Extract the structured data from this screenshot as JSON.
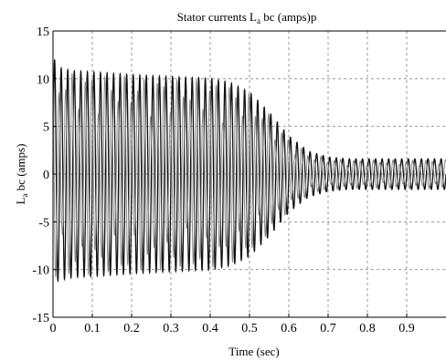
{
  "chart_data": {
    "type": "line",
    "title": {
      "prefix": "Stator currents L",
      "sub": "a",
      "suffix": " bc (amps)p"
    },
    "xlabel": "Time  (sec)",
    "ylabel": {
      "prefix": "L",
      "sub": "a",
      "suffix": " bc (amps)"
    },
    "xlim": [
      0,
      1
    ],
    "ylim": [
      -15,
      15
    ],
    "x_ticks": [
      0,
      0.1,
      0.2,
      0.3,
      0.4,
      0.5,
      0.6,
      0.7,
      0.8,
      0.9
    ],
    "x_tick_labels": [
      "0",
      "0.1",
      "0.2",
      "0.3",
      "0.4",
      "0.5",
      "0.6",
      "0.7",
      "0.8",
      "0.9"
    ],
    "y_ticks": [
      -15,
      -10,
      -5,
      0,
      5,
      10,
      15
    ],
    "y_tick_labels": [
      "-15",
      "-10",
      "-5",
      "0",
      "5",
      "10",
      "15"
    ],
    "grid": true,
    "series": [
      {
        "color": "#111111",
        "envelope_t": [
          0,
          0.01,
          0.05,
          0.1,
          0.2,
          0.3,
          0.4,
          0.45,
          0.5,
          0.55,
          0.6,
          0.65,
          0.7,
          0.75,
          0.8,
          1.0
        ],
        "envelope_amp": [
          12.5,
          11.2,
          10.8,
          10.7,
          10.4,
          10.2,
          10.0,
          9.6,
          8.6,
          6.5,
          4.0,
          2.4,
          1.8,
          1.6,
          1.6,
          1.6
        ]
      },
      {
        "color": "#8a8a8a",
        "envelope_t": [
          0,
          0.01,
          0.05,
          0.1,
          0.2,
          0.3,
          0.4,
          0.45,
          0.5,
          0.55,
          0.6,
          0.65,
          0.7,
          0.75,
          0.8,
          1.0
        ],
        "envelope_amp": [
          12.0,
          11.0,
          10.6,
          10.5,
          10.2,
          10.0,
          9.8,
          9.4,
          8.4,
          6.3,
          3.8,
          2.2,
          1.7,
          1.5,
          1.5,
          1.5
        ]
      }
    ]
  }
}
